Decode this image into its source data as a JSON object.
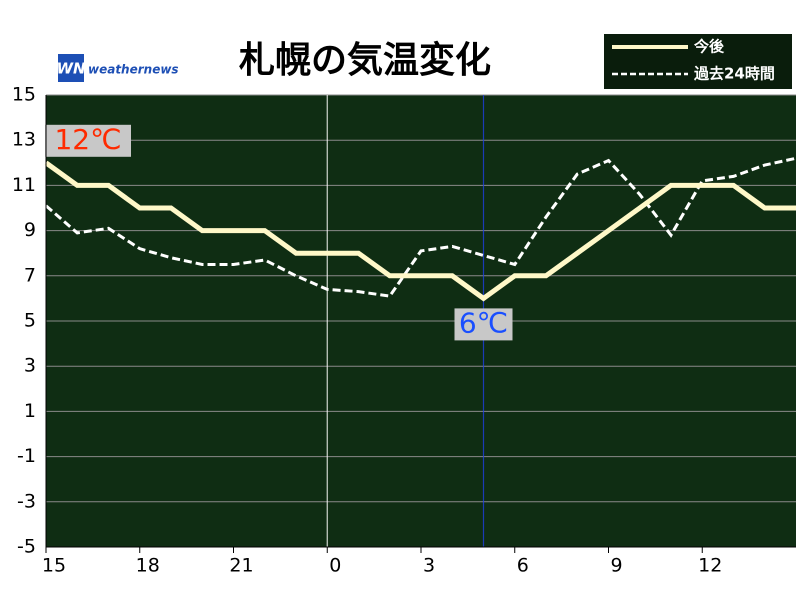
{
  "chart_data": {
    "type": "line",
    "title": "札幌の気温変化",
    "logo_mark": "WN",
    "logo": "weathernews",
    "x": [
      0,
      1,
      2,
      3,
      4,
      5,
      6,
      7,
      8,
      9,
      10,
      11,
      12,
      13,
      14,
      15,
      16,
      17,
      18,
      19,
      20,
      21,
      22,
      23,
      24
    ],
    "xlim": [
      0,
      24
    ],
    "xticks": [
      {
        "value": 0,
        "label": "15"
      },
      {
        "value": 3,
        "label": "18"
      },
      {
        "value": 6,
        "label": "21"
      },
      {
        "value": 9,
        "label": "0"
      },
      {
        "value": 12,
        "label": "3"
      },
      {
        "value": 15,
        "label": "6"
      },
      {
        "value": 18,
        "label": "9"
      },
      {
        "value": 21,
        "label": "12"
      }
    ],
    "ylim": [
      -5,
      15
    ],
    "yticks": [
      -5,
      -3,
      -1,
      1,
      3,
      5,
      7,
      9,
      11,
      13,
      15
    ],
    "grid": true,
    "background": "#0f2d13",
    "markers": [
      {
        "x": 9,
        "color": "#ffffff"
      },
      {
        "x": 14,
        "color": "#1f3fe0"
      }
    ],
    "legend": "top-right",
    "series": [
      {
        "name": "今後",
        "color": "#fff8c8",
        "dash": false,
        "values": [
          12,
          11,
          11,
          10,
          10,
          9,
          9,
          9,
          8,
          8,
          8,
          7,
          7,
          7,
          6,
          7,
          7,
          8,
          9,
          10,
          11,
          11,
          11,
          10,
          10
        ],
        "value_labels": [
          "12℃",
          null,
          null,
          null,
          null,
          null,
          null,
          null,
          null,
          null,
          null,
          null,
          null,
          null,
          "6℃",
          null,
          null,
          null,
          null,
          null,
          null,
          null,
          null,
          null,
          null
        ]
      },
      {
        "name": "過去24時間",
        "color": "#ffffff",
        "dash": true,
        "values": [
          10.1,
          8.9,
          9.1,
          8.2,
          7.8,
          7.5,
          7.5,
          7.7,
          7.0,
          6.4,
          6.3,
          6.1,
          8.1,
          8.3,
          7.9,
          7.5,
          9.6,
          11.5,
          12.1,
          10.6,
          8.8,
          11.2,
          11.4,
          11.9,
          12.2
        ]
      }
    ]
  }
}
